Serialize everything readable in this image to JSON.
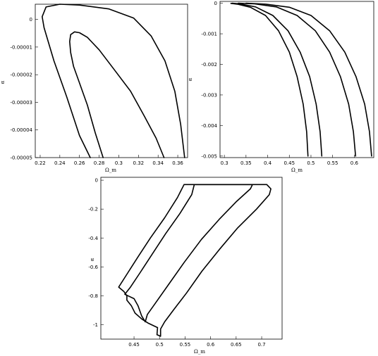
{
  "chart_data": [
    {
      "type": "line",
      "xlabel": "Ω_m",
      "ylabel": "α",
      "xlim": [
        0.215,
        0.37
      ],
      "ylim": [
        -5e-05,
        5.5e-06
      ],
      "xticks": [
        {
          "v": 0.22,
          "label": "0.22"
        },
        {
          "v": 0.24,
          "label": "0.24"
        },
        {
          "v": 0.26,
          "label": "0.26"
        },
        {
          "v": 0.28,
          "label": "0.28"
        },
        {
          "v": 0.3,
          "label": "0.3"
        },
        {
          "v": 0.32,
          "label": "0.32"
        },
        {
          "v": 0.34,
          "label": "0.34"
        },
        {
          "v": 0.36,
          "label": "0.36"
        }
      ],
      "yticks": [
        {
          "v": 0,
          "label": "0"
        },
        {
          "v": -1e-05,
          "label": "-0.00001"
        },
        {
          "v": -2e-05,
          "label": "-0.00002"
        },
        {
          "v": -3e-05,
          "label": "-0.00003"
        },
        {
          "v": -4e-05,
          "label": "-0.00004"
        },
        {
          "v": -5e-05,
          "label": "-0.00005"
        }
      ],
      "series": [
        {
          "points": [
            [
              0.271,
              -5e-05
            ],
            [
              0.26,
              -4.2e-05
            ],
            [
              0.247,
              -2.8e-05
            ],
            [
              0.234,
              -1.5e-05
            ],
            [
              0.224,
              -3e-06
            ],
            [
              0.222,
              1e-06
            ],
            [
              0.226,
              4.5e-06
            ],
            [
              0.24,
              5.5e-06
            ],
            [
              0.26,
              5.2e-06
            ],
            [
              0.29,
              3.8e-06
            ],
            [
              0.315,
              5e-07
            ],
            [
              0.333,
              -6e-06
            ],
            [
              0.347,
              -1.5e-05
            ],
            [
              0.357,
              -2.6e-05
            ],
            [
              0.363,
              -3.8e-05
            ],
            [
              0.367,
              -5e-05
            ]
          ]
        },
        {
          "points": [
            [
              0.284,
              -5e-05
            ],
            [
              0.276,
              -4.1e-05
            ],
            [
              0.268,
              -3.1e-05
            ],
            [
              0.26,
              -2.3e-05
            ],
            [
              0.254,
              -1.7e-05
            ],
            [
              0.251,
              -1.2e-05
            ],
            [
              0.25,
              -8e-06
            ],
            [
              0.251,
              -5.5e-06
            ],
            [
              0.255,
              -4.5e-06
            ],
            [
              0.26,
              -4.8e-06
            ],
            [
              0.268,
              -6.5e-06
            ],
            [
              0.28,
              -1.1e-05
            ],
            [
              0.295,
              -1.8e-05
            ],
            [
              0.312,
              -2.6e-05
            ],
            [
              0.326,
              -3.5e-05
            ],
            [
              0.338,
              -4.3e-05
            ],
            [
              0.346,
              -5e-05
            ]
          ]
        }
      ]
    },
    {
      "type": "line",
      "xlabel": "Ω_m",
      "ylabel": "α",
      "xlim": [
        0.29,
        0.645
      ],
      "ylim": [
        -0.00505,
        6e-05
      ],
      "xticks": [
        {
          "v": 0.3,
          "label": "0.3"
        },
        {
          "v": 0.35,
          "label": "0.35"
        },
        {
          "v": 0.4,
          "label": "0.4"
        },
        {
          "v": 0.45,
          "label": "0.45"
        },
        {
          "v": 0.5,
          "label": "0.5"
        },
        {
          "v": 0.55,
          "label": "0.55"
        },
        {
          "v": 0.6,
          "label": "0.6"
        }
      ],
      "yticks": [
        {
          "v": 0,
          "label": "0"
        },
        {
          "v": -0.001,
          "label": "-0.001"
        },
        {
          "v": -0.002,
          "label": "-0.002"
        },
        {
          "v": -0.003,
          "label": "-0.003"
        },
        {
          "v": -0.004,
          "label": "-0.004"
        },
        {
          "v": -0.005,
          "label": "-0.005"
        }
      ],
      "series": [
        {
          "points": [
            [
              0.493,
              -0.005
            ],
            [
              0.49,
              -0.0042
            ],
            [
              0.482,
              -0.0033
            ],
            [
              0.468,
              -0.0024
            ],
            [
              0.45,
              -0.0016
            ],
            [
              0.425,
              -0.0009
            ],
            [
              0.395,
              -0.0004
            ],
            [
              0.36,
              -0.00013
            ],
            [
              0.33,
              -3e-05
            ],
            [
              0.315,
              -5e-06
            ]
          ]
        },
        {
          "points": [
            [
              0.525,
              -0.005
            ],
            [
              0.521,
              -0.0042
            ],
            [
              0.512,
              -0.0033
            ],
            [
              0.497,
              -0.0024
            ],
            [
              0.475,
              -0.0016
            ],
            [
              0.447,
              -0.0009
            ],
            [
              0.412,
              -0.0004
            ],
            [
              0.372,
              -0.00012
            ],
            [
              0.336,
              -2e-05
            ],
            [
              0.318,
              0.0
            ]
          ]
        },
        {
          "points": [
            [
              0.603,
              -0.005
            ],
            [
              0.598,
              -0.0042
            ],
            [
              0.587,
              -0.0033
            ],
            [
              0.568,
              -0.0024
            ],
            [
              0.543,
              -0.0016
            ],
            [
              0.51,
              -0.0009
            ],
            [
              0.468,
              -0.0004
            ],
            [
              0.42,
              -0.00012
            ],
            [
              0.37,
              -2e-05
            ],
            [
              0.332,
              0.0
            ]
          ]
        },
        {
          "points": [
            [
              0.64,
              -0.005
            ],
            [
              0.635,
              -0.0042
            ],
            [
              0.624,
              -0.0033
            ],
            [
              0.604,
              -0.0024
            ],
            [
              0.578,
              -0.0016
            ],
            [
              0.543,
              -0.0009
            ],
            [
              0.5,
              -0.0004
            ],
            [
              0.45,
              -0.00013
            ],
            [
              0.395,
              -3e-05
            ],
            [
              0.35,
              0.0
            ]
          ]
        }
      ]
    },
    {
      "type": "line",
      "xlabel": "Ω_m",
      "ylabel": "α",
      "xlim": [
        0.385,
        0.74
      ],
      "ylim": [
        -1.1,
        0.02
      ],
      "xticks": [
        {
          "v": 0.45,
          "label": "0.45"
        },
        {
          "v": 0.5,
          "label": "0.5"
        },
        {
          "v": 0.55,
          "label": "0.55"
        },
        {
          "v": 0.6,
          "label": "0.6"
        },
        {
          "v": 0.65,
          "label": "0.65"
        },
        {
          "v": 0.7,
          "label": "0.7"
        }
      ],
      "yticks": [
        {
          "v": 0,
          "label": "0"
        },
        {
          "v": -0.2,
          "label": "-0.2"
        },
        {
          "v": -0.4,
          "label": "-0.4"
        },
        {
          "v": -0.6,
          "label": "-0.6"
        },
        {
          "v": -0.8,
          "label": "-0.8"
        },
        {
          "v": -1.0,
          "label": "-1"
        }
      ],
      "series": [
        {
          "points": [
            [
              0.548,
              -0.03
            ],
            [
              0.535,
              -0.12
            ],
            [
              0.51,
              -0.26
            ],
            [
              0.482,
              -0.4
            ],
            [
              0.458,
              -0.53
            ],
            [
              0.438,
              -0.64
            ],
            [
              0.42,
              -0.74
            ],
            [
              0.43,
              -0.77
            ],
            [
              0.436,
              -0.8
            ],
            [
              0.436,
              -0.83
            ],
            [
              0.445,
              -0.87
            ],
            [
              0.452,
              -0.92
            ],
            [
              0.465,
              -0.96
            ],
            [
              0.478,
              -0.99
            ],
            [
              0.496,
              -1.02
            ],
            [
              0.495,
              -1.07
            ],
            [
              0.502,
              -1.08
            ],
            [
              0.502,
              -1.03
            ],
            [
              0.51,
              -0.98
            ],
            [
              0.527,
              -0.9
            ],
            [
              0.553,
              -0.78
            ],
            [
              0.583,
              -0.63
            ],
            [
              0.617,
              -0.48
            ],
            [
              0.653,
              -0.33
            ],
            [
              0.69,
              -0.2
            ],
            [
              0.715,
              -0.1
            ],
            [
              0.718,
              -0.06
            ],
            [
              0.71,
              -0.03
            ],
            [
              0.548,
              -0.03
            ]
          ]
        },
        {
          "points": [
            [
              0.568,
              -0.03
            ],
            [
              0.563,
              -0.1
            ],
            [
              0.54,
              -0.23
            ],
            [
              0.512,
              -0.37
            ],
            [
              0.486,
              -0.51
            ],
            [
              0.462,
              -0.64
            ],
            [
              0.443,
              -0.74
            ],
            [
              0.432,
              -0.79
            ],
            [
              0.45,
              -0.82
            ],
            [
              0.458,
              -0.87
            ],
            [
              0.465,
              -0.94
            ],
            [
              0.472,
              -0.98
            ],
            [
              0.476,
              -0.93
            ],
            [
              0.492,
              -0.85
            ],
            [
              0.518,
              -0.72
            ],
            [
              0.548,
              -0.57
            ],
            [
              0.582,
              -0.41
            ],
            [
              0.617,
              -0.27
            ],
            [
              0.65,
              -0.15
            ],
            [
              0.678,
              -0.06
            ],
            [
              0.682,
              -0.03
            ],
            [
              0.568,
              -0.03
            ]
          ]
        }
      ]
    }
  ]
}
